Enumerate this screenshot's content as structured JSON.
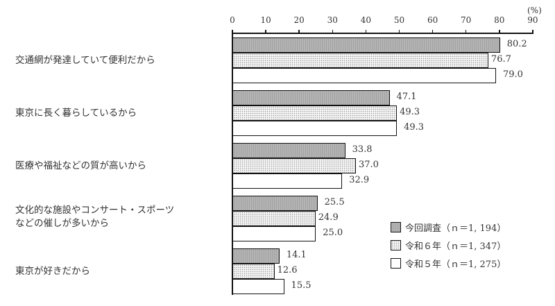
{
  "chart_data": {
    "type": "bar",
    "orientation": "horizontal",
    "title": "",
    "xlabel": "",
    "ylabel": "",
    "unit": "(%)",
    "xlim": [
      0,
      90
    ],
    "ticks": [
      0,
      10,
      20,
      30,
      40,
      50,
      60,
      70,
      80,
      90
    ],
    "grid": false,
    "legend_position": "lower-right",
    "categories": [
      "交通網が発達していて便利だから",
      "東京に長く暮らしているから",
      "医療や福祉などの質が高いから",
      "文化的な施設やコンサート・スポーツ\nなどの催しが多いから",
      "東京が好きだから"
    ],
    "series": [
      {
        "name": "今回調査（n＝1,194）",
        "pattern": "vertical-stripe-gray",
        "values": [
          80.2,
          47.1,
          33.8,
          25.5,
          14.1
        ]
      },
      {
        "name": "令和６年（n＝1,347）",
        "pattern": "dotted",
        "values": [
          76.7,
          49.3,
          37.0,
          24.9,
          12.6
        ]
      },
      {
        "name": "令和５年（n＝1,275）",
        "pattern": "white",
        "values": [
          79.0,
          49.3,
          32.9,
          25.0,
          15.5
        ]
      }
    ],
    "value_labels": [
      [
        "80.2",
        "76.7",
        "79.0"
      ],
      [
        "47.1",
        "49.3",
        "49.3"
      ],
      [
        "33.8",
        "37.0",
        "32.9"
      ],
      [
        "25.5",
        "24.9",
        "25.0"
      ],
      [
        "14.1",
        "12.6",
        "15.5"
      ]
    ]
  },
  "legend": {
    "items": [
      "今回調査（ｎ＝1, 194）",
      "令和６年（ｎ＝1, 347）",
      "令和５年（ｎ＝1, 275）"
    ]
  }
}
